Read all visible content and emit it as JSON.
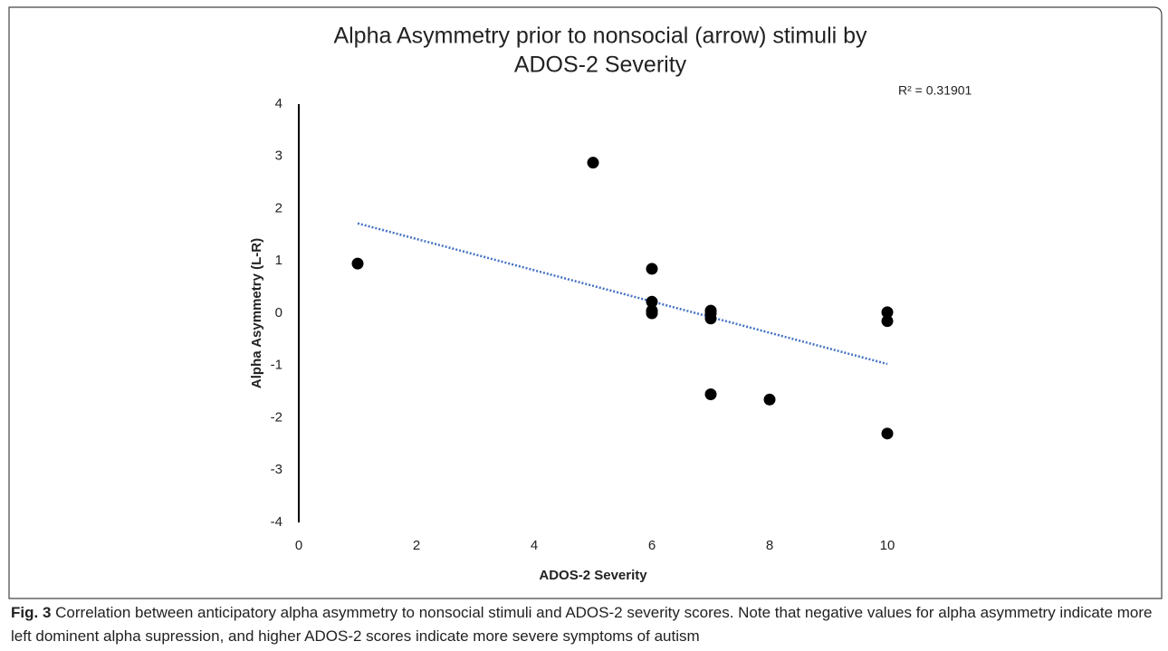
{
  "chart_data": {
    "type": "scatter",
    "title": "Alpha Asymmetry prior to nonsocial (arrow) stimuli by",
    "subtitle": "ADOS-2 Severity",
    "x_label": "ADOS-2 Severity",
    "y_label": "Alpha Asymmetry (L-R)",
    "annotation": "R² = 0.31901",
    "series": [
      {
        "name": "ADOS-2 Severity",
        "color": "#000000",
        "x": [
          1,
          5,
          6,
          6,
          6,
          6,
          7,
          7,
          7,
          7,
          8,
          10,
          10,
          10
        ],
        "values": [
          0.95,
          2.88,
          0.85,
          0.22,
          0.05,
          0.0,
          0.05,
          0.0,
          -0.1,
          -1.55,
          -1.65,
          0.02,
          -0.15,
          -2.3
        ]
      }
    ],
    "trendline": {
      "color": "#4472c4",
      "x": [
        1,
        10
      ],
      "values": [
        1.72,
        -0.97
      ]
    },
    "xlim": [
      0,
      10
    ],
    "xticks": [
      0,
      2,
      4,
      6,
      8,
      10
    ],
    "ylim": [
      -4,
      4
    ],
    "yticks": [
      -4,
      -3,
      -2,
      -1,
      0,
      1,
      2,
      3,
      4
    ],
    "grid": false
  },
  "caption": {
    "label": "Fig. 3",
    "text": "Correlation between anticipatory alpha asymmetry to nonsocial stimuli and ADOS-2 severity scores. Note that negative values for alpha asymmetry indicate more left dominent alpha supression, and higher ADOS-2 scores indicate more severe symptoms of autism"
  }
}
